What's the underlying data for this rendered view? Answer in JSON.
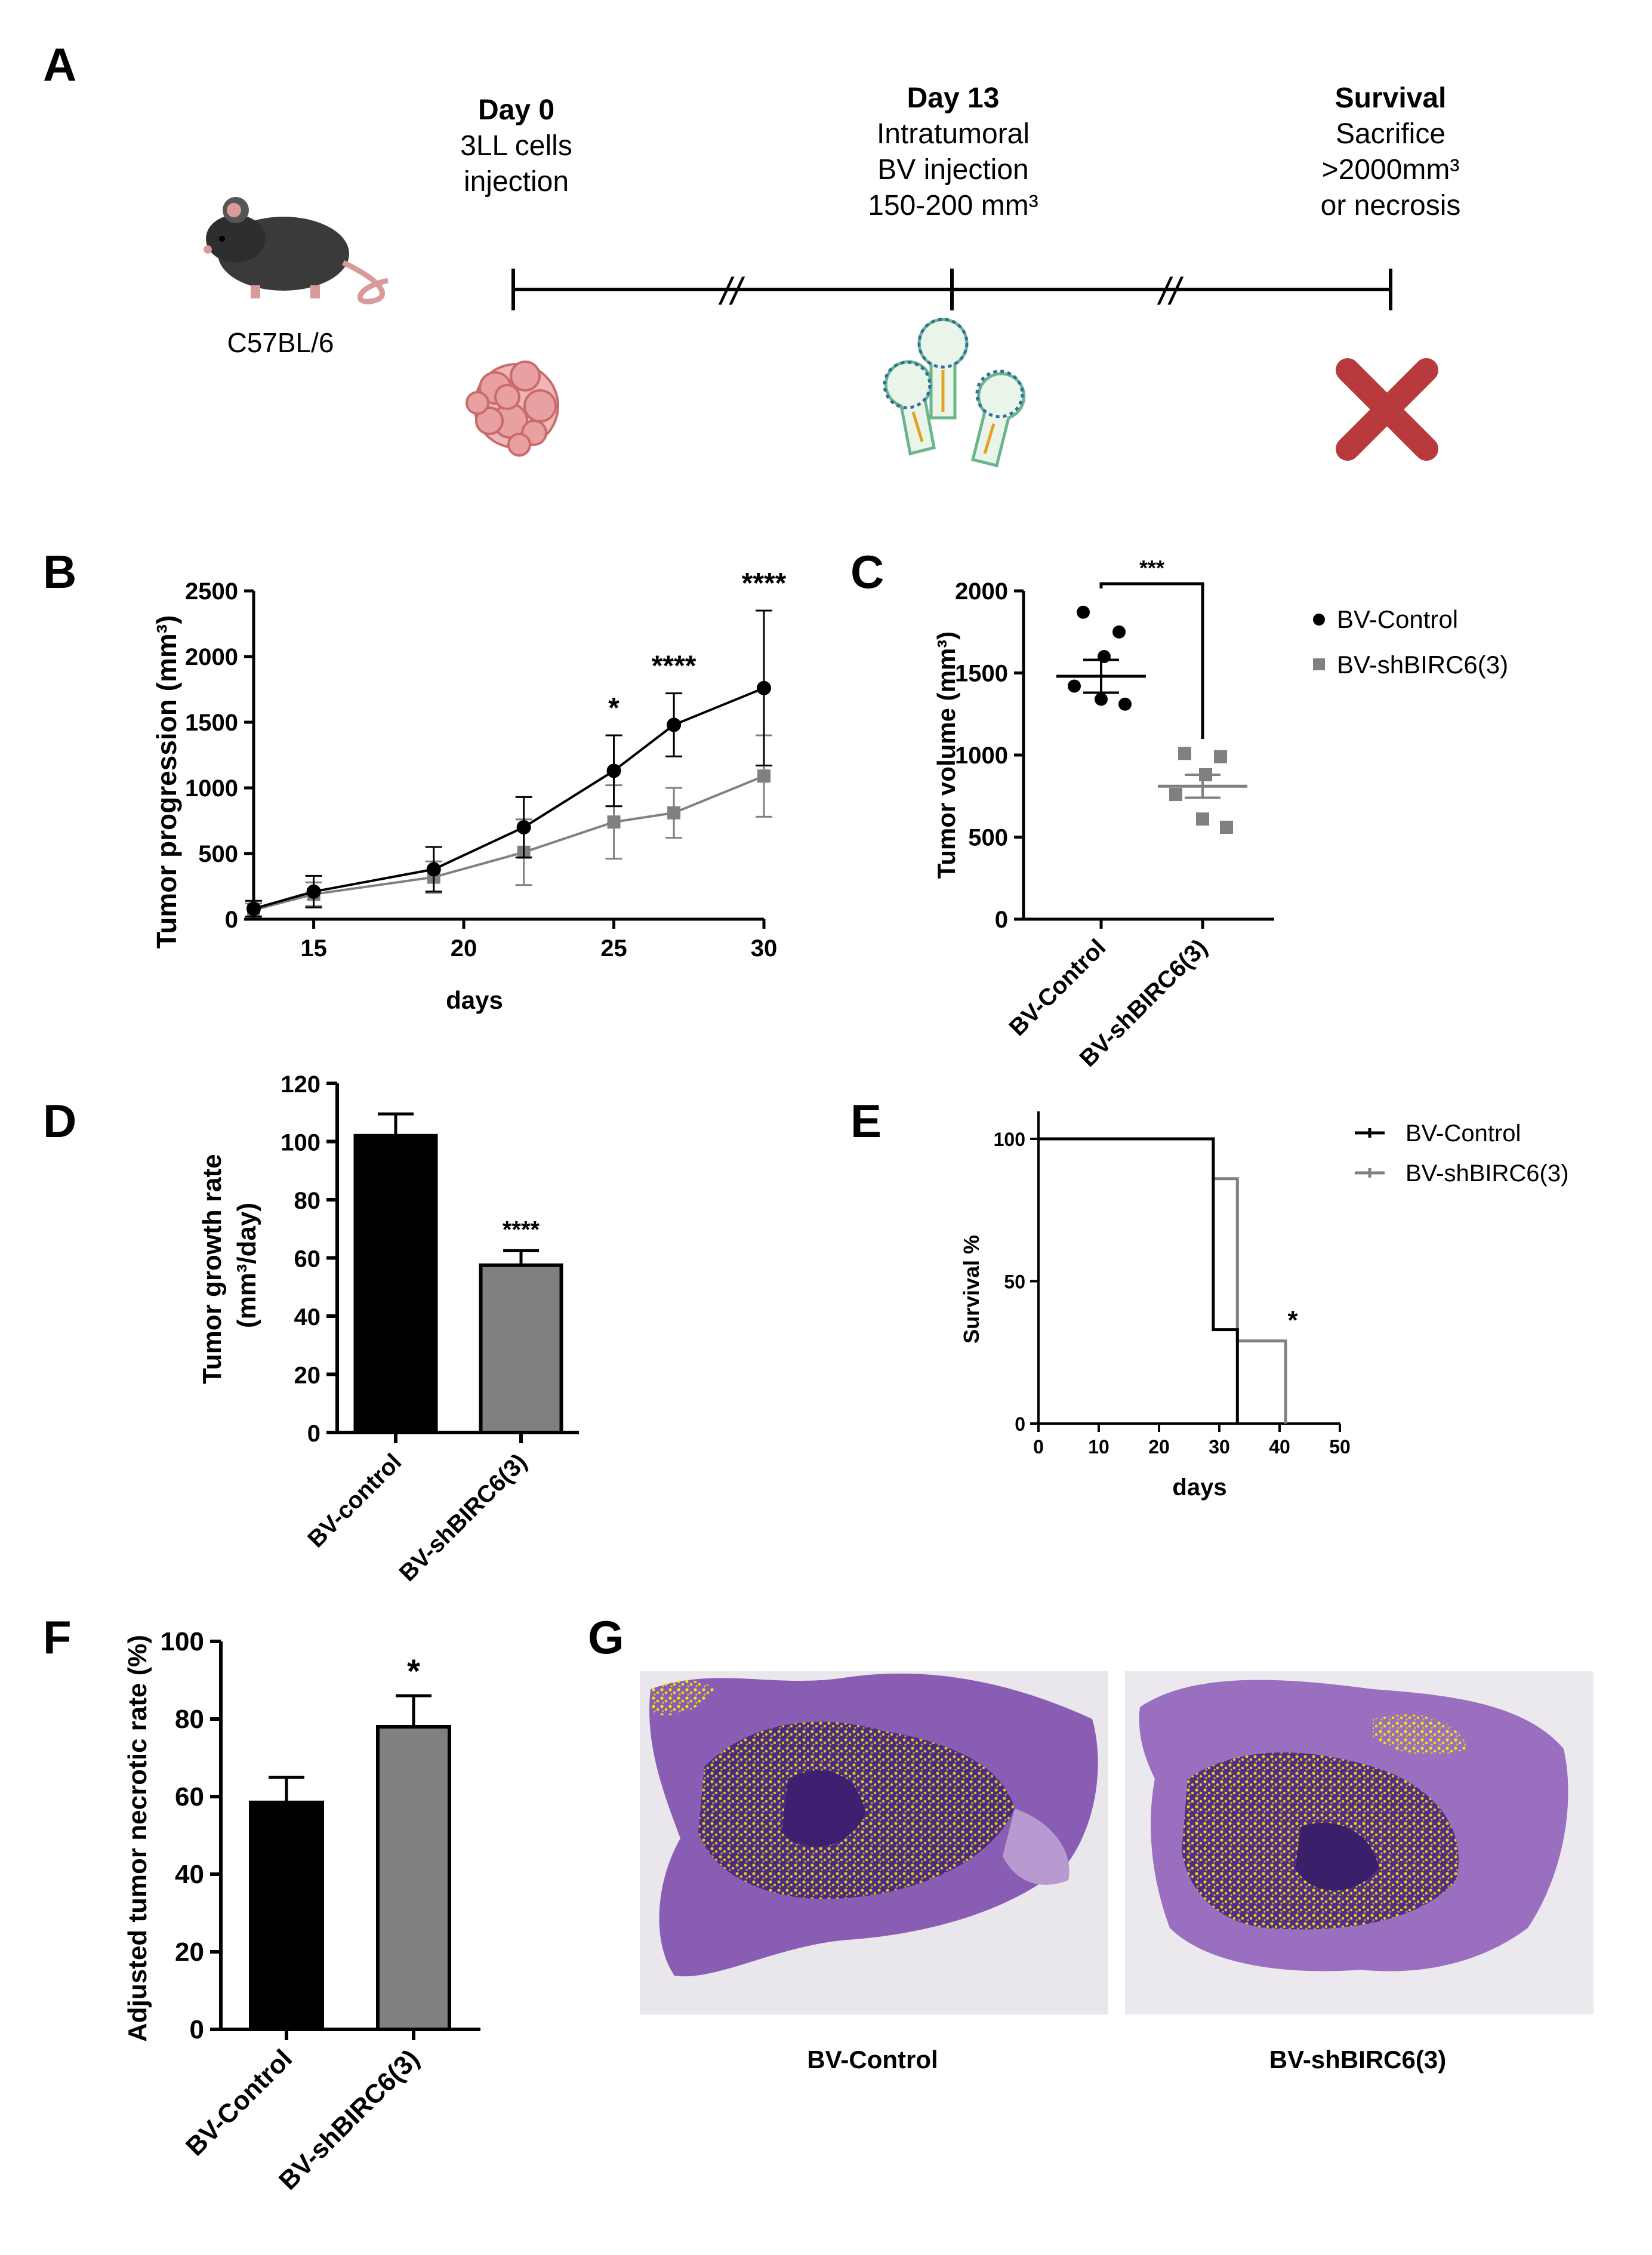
{
  "panels": {
    "A": "A",
    "B": "B",
    "C": "C",
    "D": "D",
    "E": "E",
    "F": "F",
    "G": "G"
  },
  "timeline": {
    "mouse_label": "C57BL/6",
    "steps": [
      {
        "title": "Day 0",
        "lines": [
          "3LL cells",
          "injection"
        ]
      },
      {
        "title": "Day 13",
        "lines": [
          "Intratumoral",
          "BV injection",
          "150-200 mm³"
        ]
      },
      {
        "title": "Survival",
        "lines": [
          "Sacrifice",
          ">2000mm³",
          "or necrosis"
        ]
      }
    ],
    "break_mark": "//",
    "icons": [
      "mouse-icon",
      "tumor-cells-icon",
      "virus-icon",
      "cross-icon"
    ]
  },
  "legend": {
    "control": "BV-Control",
    "shbirc6": "BV-shBIRC6(3)"
  },
  "colors": {
    "control": "#000000",
    "shbirc6": "#808080",
    "necrosis": "#f5e900",
    "cross": "#b83a3d",
    "tissue": "#7b52a8"
  },
  "chart_data": [
    {
      "panel": "B",
      "type": "line",
      "xlabel": "days",
      "ylabel": "Tumor progression (mm³)",
      "xlim": [
        13,
        30
      ],
      "ylim": [
        0,
        2500
      ],
      "xticks": [
        15,
        20,
        25,
        30
      ],
      "yticks": [
        0,
        500,
        1000,
        1500,
        2000,
        2500
      ],
      "series": [
        {
          "name": "BV-Control",
          "x": [
            13,
            15,
            19,
            22,
            25,
            27,
            30
          ],
          "y": [
            80,
            210,
            380,
            700,
            1130,
            1480,
            1760
          ],
          "err": [
            60,
            120,
            170,
            230,
            270,
            240,
            590
          ]
        },
        {
          "name": "BV-shBIRC6(3)",
          "x": [
            13,
            15,
            19,
            22,
            25,
            27,
            30
          ],
          "y": [
            70,
            190,
            320,
            510,
            740,
            810,
            1090
          ],
          "err": [
            50,
            90,
            120,
            250,
            280,
            190,
            310
          ]
        }
      ],
      "annotations": [
        {
          "x": 25,
          "text": "*"
        },
        {
          "x": 27,
          "text": "****"
        },
        {
          "x": 30,
          "text": "****"
        }
      ]
    },
    {
      "panel": "C",
      "type": "scatter",
      "ylabel": "Tumor volume (mm³)",
      "categories": [
        "BV-Control",
        "BV-shBIRC6(3)"
      ],
      "ylim": [
        0,
        2000
      ],
      "yticks": [
        0,
        500,
        1000,
        1500,
        2000
      ],
      "series": [
        {
          "name": "BV-Control",
          "values": [
            1870,
            1750,
            1600,
            1420,
            1340,
            1310
          ],
          "mean": 1480,
          "sem": 100
        },
        {
          "name": "BV-shBIRC6(3)",
          "values": [
            1010,
            990,
            880,
            760,
            610,
            560
          ],
          "mean": 810,
          "sem": 70
        }
      ],
      "significance": "***"
    },
    {
      "panel": "D",
      "type": "bar",
      "ylabel": "Tumor growth rate (mm³/day)",
      "categories": [
        "BV-control",
        "BV-shBIRC6(3)"
      ],
      "ylim": [
        0,
        120
      ],
      "yticks": [
        0,
        20,
        40,
        60,
        80,
        100,
        120
      ],
      "values": [
        102,
        57.5
      ],
      "err": [
        7.5,
        5
      ],
      "annotations": [
        {
          "category": "BV-shBIRC6(3)",
          "text": "****"
        }
      ]
    },
    {
      "panel": "E",
      "type": "line",
      "xlabel": "days",
      "ylabel": "Survival %",
      "xlim": [
        0,
        50
      ],
      "ylim": [
        0,
        100
      ],
      "xticks": [
        0,
        10,
        20,
        30,
        40,
        50
      ],
      "yticks": [
        0,
        50,
        100
      ],
      "series": [
        {
          "name": "BV-Control",
          "x": [
            0,
            29,
            29,
            33,
            33
          ],
          "y": [
            100,
            100,
            33,
            33,
            0
          ]
        },
        {
          "name": "BV-shBIRC6(3)",
          "x": [
            0,
            29,
            29,
            33,
            33,
            41,
            41
          ],
          "y": [
            100,
            100,
            86,
            86,
            29,
            29,
            0
          ]
        }
      ],
      "annotations": [
        {
          "x": 41,
          "y": 29,
          "text": "*"
        }
      ]
    },
    {
      "panel": "F",
      "type": "bar",
      "ylabel": "Adjusted tumor necrotic rate (%)",
      "categories": [
        "BV-Control",
        "BV-shBIRC6(3)"
      ],
      "ylim": [
        0,
        100
      ],
      "yticks": [
        0,
        20,
        40,
        60,
        80,
        100
      ],
      "values": [
        58.5,
        78
      ],
      "err": [
        6.5,
        8
      ],
      "annotations": [
        {
          "category": "BV-shBIRC6(3)",
          "text": "*"
        }
      ]
    }
  ],
  "histology": {
    "captions": [
      "BV-Control",
      "BV-shBIRC6(3)"
    ]
  }
}
